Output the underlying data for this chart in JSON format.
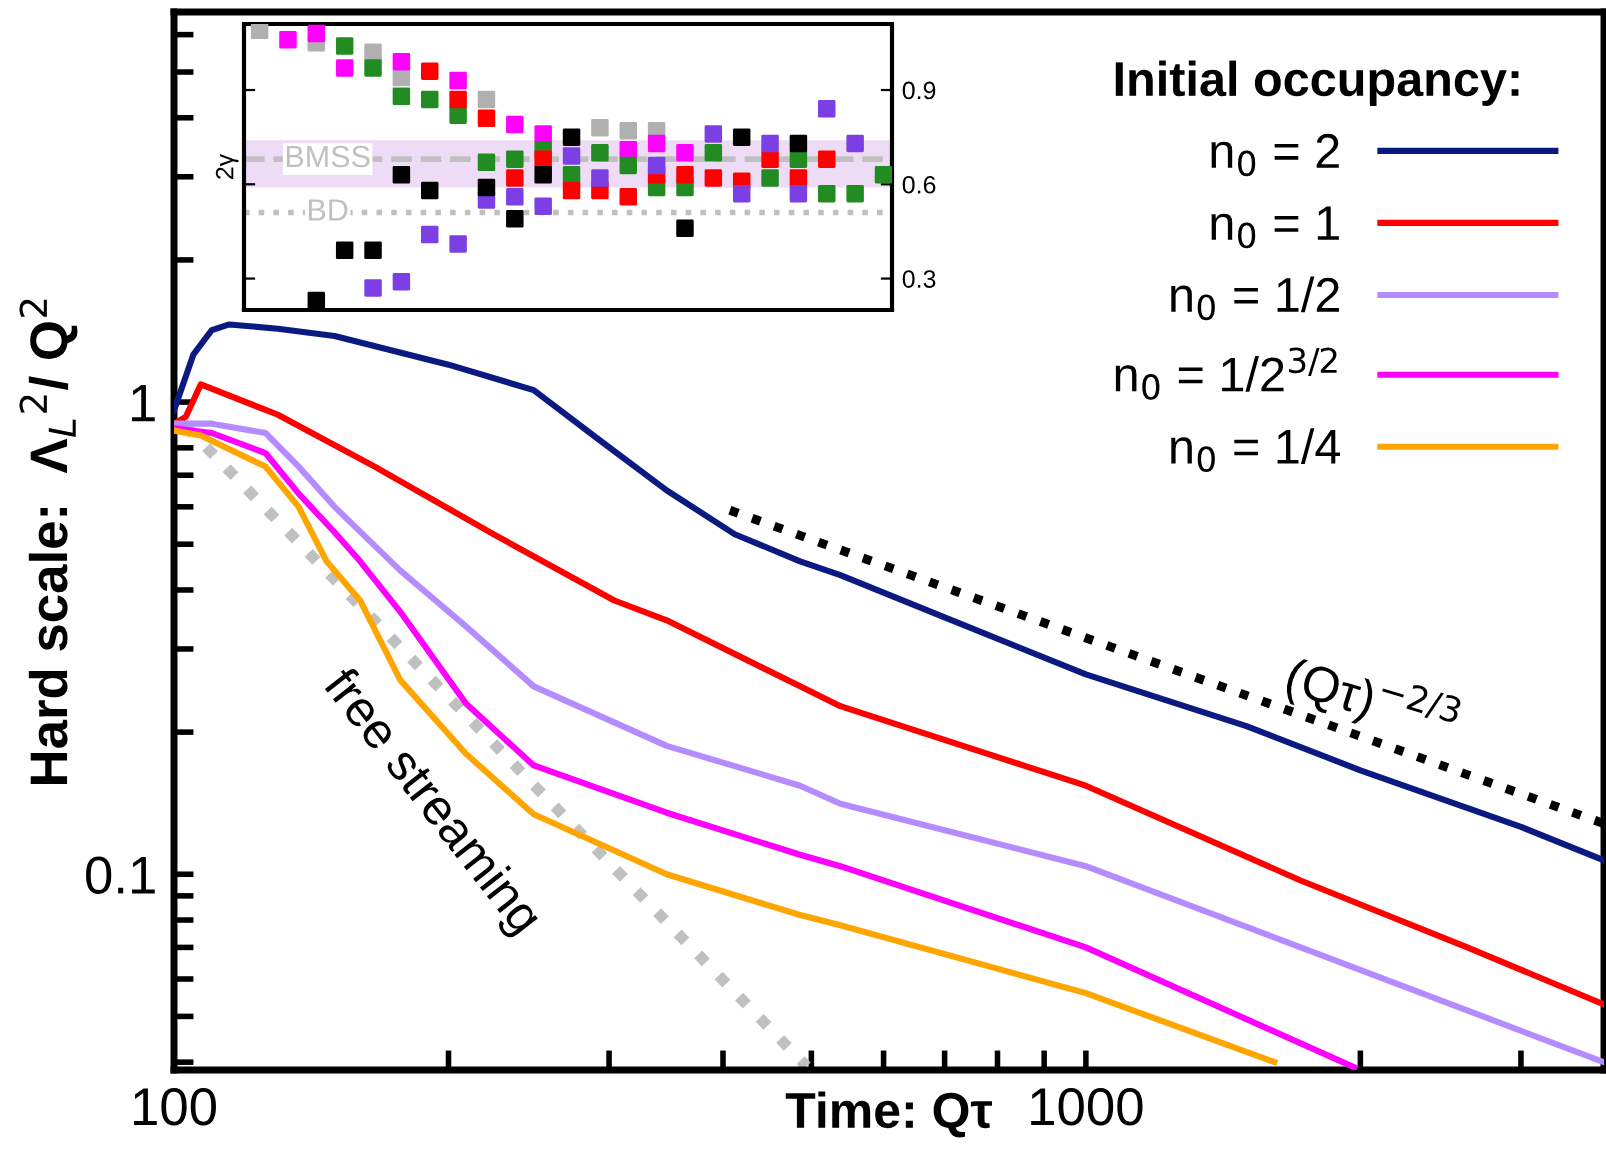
{
  "chart_data": [
    {
      "type": "line",
      "xlabel": "Time: Qτ",
      "ylabel": "Hard scale:  Λ$_{L}$$^{2}$/ Q$^{2}$",
      "legend_title": "Initial occupancy:",
      "log": "xy",
      "grid": false,
      "legend": "top right",
      "marker": "none",
      "xlim": [
        100,
        3700
      ],
      "ylim": [
        0.0385,
        6.7
      ],
      "xticks": [
        100,
        {
          "value": 200,
          "label": null
        },
        {
          "value": 300,
          "label": null
        },
        {
          "value": 400,
          "label": null
        },
        {
          "value": 500,
          "label": null
        },
        {
          "value": 600,
          "label": null
        },
        {
          "value": 700,
          "label": null
        },
        {
          "value": 800,
          "label": null
        },
        {
          "value": 900,
          "label": null
        },
        1000,
        {
          "value": 2000,
          "label": null
        },
        {
          "value": 3000,
          "label": null
        }
      ],
      "yticks": [
        {
          "value": 0.04,
          "label": null
        },
        {
          "value": 0.05,
          "label": null
        },
        {
          "value": 0.06,
          "label": null
        },
        {
          "value": 0.07,
          "label": null
        },
        {
          "value": 0.08,
          "label": null
        },
        {
          "value": 0.09,
          "label": null
        },
        0.1,
        {
          "value": 0.2,
          "label": null
        },
        {
          "value": 0.3,
          "label": null
        },
        {
          "value": 0.4,
          "label": null
        },
        {
          "value": 0.5,
          "label": null
        },
        {
          "value": 0.6,
          "label": null
        },
        {
          "value": 0.7,
          "label": null
        },
        {
          "value": 0.8,
          "label": null
        },
        {
          "value": 0.9,
          "label": null
        },
        1,
        {
          "value": 2,
          "label": null
        },
        {
          "value": 3,
          "label": null
        },
        {
          "value": 4,
          "label": null
        },
        {
          "value": 5,
          "label": null
        },
        {
          "value": 6,
          "label": null
        }
      ],
      "series": [
        {
          "name": "n$_{0}$ = 2",
          "color": "#0b1a80",
          "line_style": "solid",
          "x": [
            100,
            105,
            110,
            115,
            130,
            150,
            200,
            248,
            293,
            347,
            412,
            486,
            538,
            700,
            1000,
            1500,
            2000,
            3000,
            3700
          ],
          "values": [
            0.96,
            1.26,
            1.42,
            1.46,
            1.43,
            1.38,
            1.2,
            1.06,
            0.83,
            0.65,
            0.525,
            0.46,
            0.43,
            0.35,
            0.265,
            0.206,
            0.166,
            0.126,
            0.107
          ]
        },
        {
          "name": "n$_{0}$ = 1",
          "color": "#ff0000",
          "line_style": "solid",
          "x": [
            100,
            103,
            107,
            130,
            166,
            224,
            304,
            347,
            486,
            538,
            1000,
            1720,
            2620,
            3700
          ],
          "values": [
            0.9,
            0.93,
            1.09,
            0.94,
            0.73,
            0.525,
            0.38,
            0.345,
            0.25,
            0.227,
            0.154,
            0.097,
            0.07,
            0.053
          ]
        },
        {
          "name": "n$_{0}$ = 1/2",
          "color": "#b58cff",
          "line_style": "solid",
          "x": [
            100,
            110,
            126,
            137,
            150,
            177,
            209,
            248,
            347,
            486,
            538,
            1000,
            1720,
            3700
          ],
          "values": [
            0.9,
            0.9,
            0.86,
            0.73,
            0.6,
            0.44,
            0.335,
            0.25,
            0.187,
            0.154,
            0.141,
            0.104,
            0.07,
            0.04
          ]
        },
        {
          "name": "n$_{0}$ = 1/2$^{3/2}$",
          "color": "#ff00ff",
          "line_style": "solid",
          "x": [
            100,
            110,
            126,
            137,
            150,
            160,
            177,
            209,
            248,
            347,
            486,
            538,
            1000,
            1970
          ],
          "values": [
            0.88,
            0.86,
            0.78,
            0.64,
            0.53,
            0.46,
            0.36,
            0.23,
            0.17,
            0.135,
            0.11,
            0.104,
            0.07,
            0.039
          ]
        },
        {
          "name": "n$_{0}$ = 1/4",
          "color": "#ffa500",
          "line_style": "solid",
          "x": [
            100,
            107,
            126,
            137,
            147,
            160,
            177,
            209,
            248,
            347,
            486,
            538,
            1000,
            1610
          ],
          "values": [
            0.87,
            0.85,
            0.73,
            0.6,
            0.46,
            0.38,
            0.258,
            0.18,
            0.134,
            0.1,
            0.082,
            0.078,
            0.056,
            0.04
          ]
        },
        {
          "color": "#c0c0c0",
          "line_style": "dotted",
          "x": [
            103,
            494
          ],
          "values": [
            0.89,
            0.0392
          ]
        },
        {
          "color": "#000000",
          "line_style": "dotted",
          "x": [
            407,
            3700
          ],
          "values": [
            0.59,
            0.128
          ]
        }
      ],
      "annotations": [
        {
          "text": "free streaming",
          "x": 211,
          "y": 0.212
        },
        {
          "text": "(Qτ)$^{−2/3}$",
          "x": 2213,
          "y": 0.183
        }
      ]
    },
    {
      "type": "scatter",
      "ylabel": "2γ",
      "marker": "square",
      "tick_labels": "y",
      "ylim": [
        0.2,
        1.11
      ],
      "yticks": [
        0.3,
        0.6,
        0.9
      ],
      "categories": [
        null,
        null,
        null,
        null,
        null,
        null,
        null,
        null,
        null,
        null,
        null,
        null,
        null,
        null,
        null,
        null,
        null,
        null,
        null,
        null,
        null,
        null,
        null
      ],
      "bands": [
        {
          "axis": "y",
          "from": 0.59,
          "to": 0.74,
          "color": "#eedcf6"
        }
      ],
      "ref_lines": [
        {
          "axis": "y",
          "value": 0.68,
          "label": "BMSS",
          "color": "#c0c0c0",
          "line_style": "dashed"
        },
        {
          "axis": "y",
          "value": 0.51,
          "label": "BD",
          "color": "#c0c0c0",
          "line_style": "dotted"
        }
      ],
      "series": [
        {
          "color": "#b0b0b0",
          "values": [
            1.09,
            null,
            1.05,
            null,
            1.02,
            0.94,
            null,
            null,
            0.87,
            null,
            null,
            null,
            0.78,
            0.77,
            0.77,
            null,
            null,
            null,
            null,
            null,
            null,
            null,
            null
          ]
        },
        {
          "color": "#ff00ff",
          "values": [
            null,
            1.06,
            1.08,
            0.97,
            null,
            0.99,
            null,
            0.93,
            null,
            0.79,
            0.76,
            null,
            null,
            0.71,
            0.73,
            0.7,
            null,
            null,
            null,
            null,
            null,
            null,
            null
          ]
        },
        {
          "color": "#228b22",
          "values": [
            null,
            null,
            null,
            1.04,
            0.97,
            0.88,
            0.87,
            0.82,
            0.67,
            0.68,
            0.71,
            0.63,
            0.7,
            0.66,
            0.59,
            0.59,
            0.7,
            null,
            0.62,
            0.68,
            0.57,
            0.57,
            0.63
          ]
        },
        {
          "color": "#ff0000",
          "values": [
            null,
            null,
            null,
            null,
            null,
            null,
            0.96,
            0.87,
            0.81,
            0.62,
            0.68,
            0.58,
            0.58,
            0.56,
            0.63,
            0.63,
            0.62,
            0.61,
            0.68,
            0.62,
            0.68,
            null,
            null
          ]
        },
        {
          "color": "#7b3fe4",
          "values": [
            null,
            null,
            null,
            null,
            0.27,
            0.29,
            0.44,
            0.41,
            0.55,
            0.56,
            0.53,
            0.69,
            0.62,
            null,
            0.66,
            null,
            0.76,
            0.57,
            0.73,
            0.57,
            0.84,
            0.73,
            null
          ]
        },
        {
          "color": "#000000",
          "values": [
            null,
            null,
            0.23,
            0.39,
            0.39,
            0.63,
            0.58,
            null,
            0.59,
            0.49,
            0.63,
            0.75,
            null,
            null,
            null,
            0.46,
            null,
            0.75,
            null,
            0.73,
            null,
            null,
            null
          ]
        }
      ]
    }
  ]
}
